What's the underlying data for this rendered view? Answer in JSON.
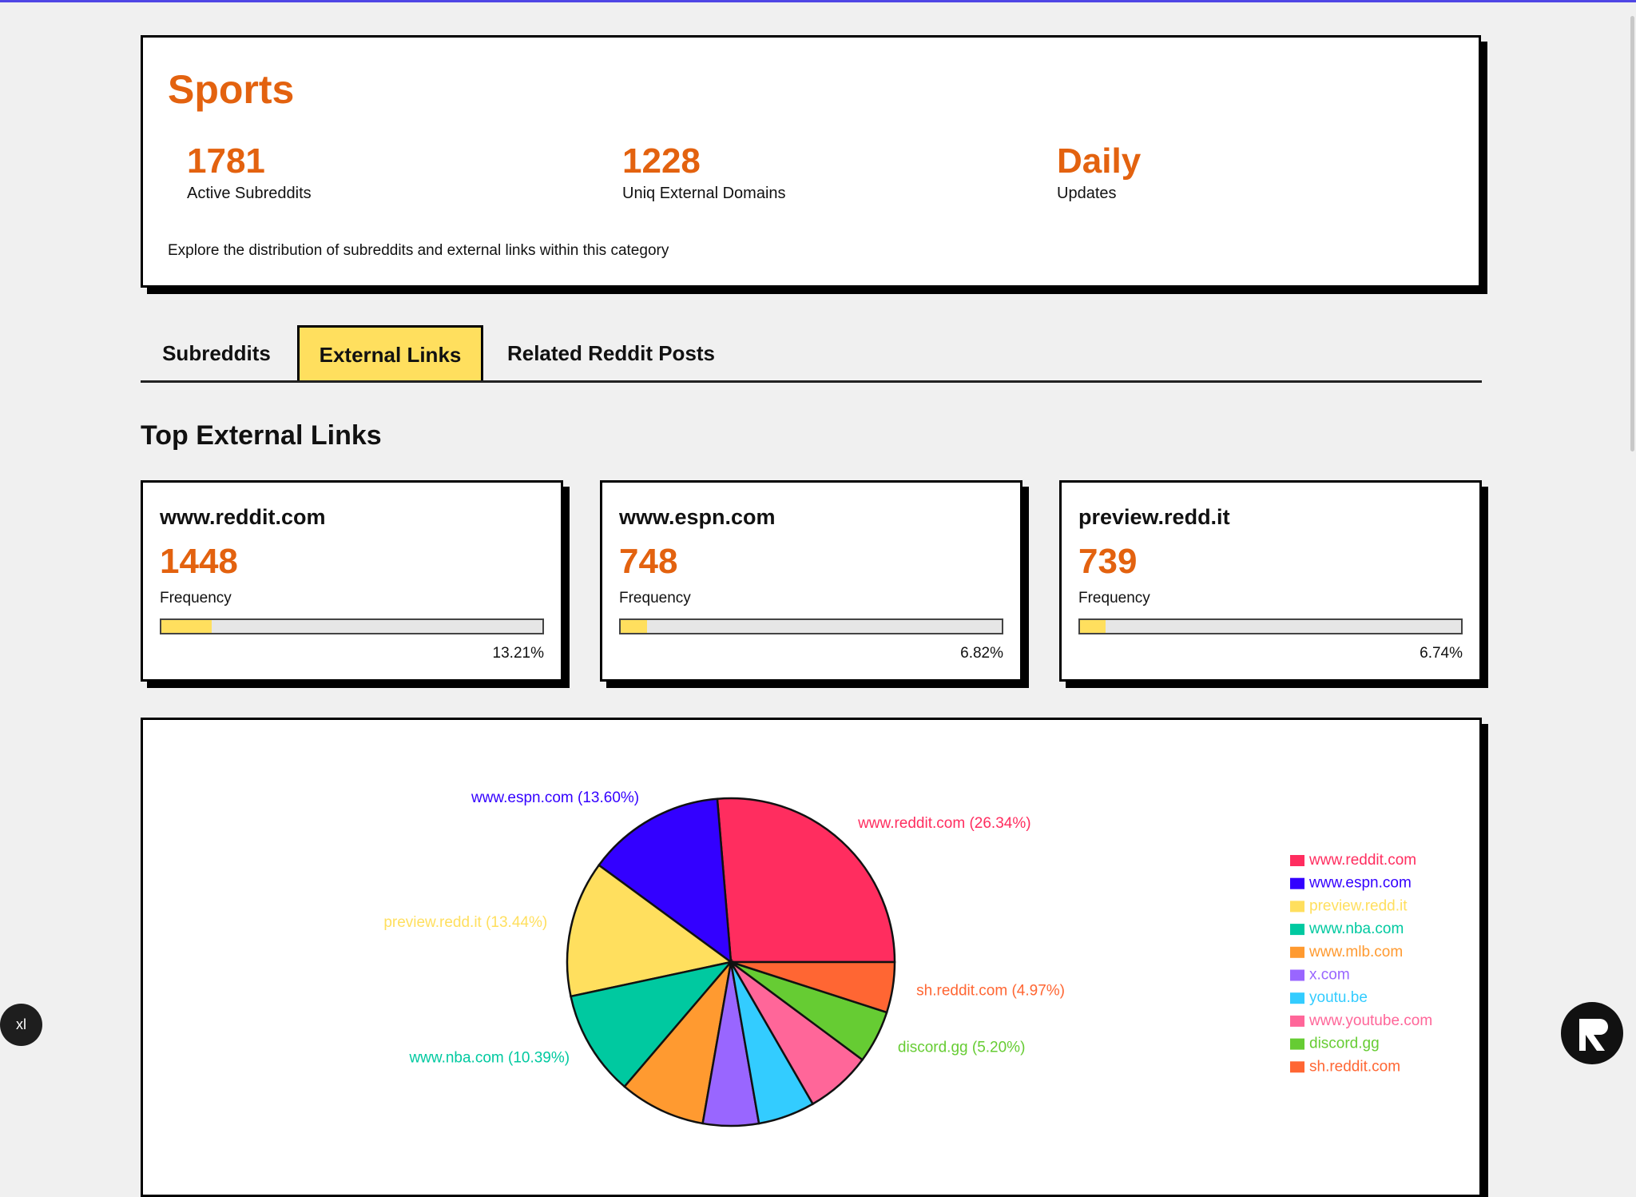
{
  "header": {
    "title": "Sports",
    "stats": [
      {
        "value": 1781,
        "label": "Active Subreddits"
      },
      {
        "value": 1228,
        "label": "Uniq External Domains"
      },
      {
        "value": "Daily",
        "label": "Updates"
      }
    ],
    "description": "Explore the distribution of subreddits and external links within this category"
  },
  "tabs": [
    "Subreddits",
    "External Links",
    "Related Reddit Posts"
  ],
  "active_tab": 1,
  "section_title": "Top External Links",
  "frequency_label": "Frequency",
  "cards": [
    {
      "domain": "www.reddit.com",
      "frequency": 1448,
      "share": 13.21,
      "share_label": "13.21%"
    },
    {
      "domain": "www.espn.com",
      "frequency": 748,
      "share": 6.82,
      "share_label": "6.82%"
    },
    {
      "domain": "preview.redd.it",
      "frequency": 739,
      "share": 6.74,
      "share_label": "6.74%"
    }
  ],
  "chart_data": {
    "type": "pie",
    "categories": [
      "www.reddit.com",
      "www.espn.com",
      "preview.redd.it",
      "www.nba.com",
      "www.mlb.com",
      "x.com",
      "youtu.be",
      "www.youtube.com",
      "discord.gg",
      "sh.reddit.com"
    ],
    "values": [
      26.34,
      13.6,
      13.44,
      10.39,
      8.5,
      5.5,
      5.6,
      6.5,
      5.2,
      4.97
    ],
    "value_labels": [
      "www.reddit.com (26.34%)",
      "www.espn.com (13.60%)",
      "preview.redd.it (13.44%)",
      "www.nba.com (10.39%)",
      null,
      null,
      null,
      null,
      "discord.gg (5.20%)",
      "sh.reddit.com (4.97%)"
    ],
    "colors": [
      "#ff2d5f",
      "#3300ff",
      "#ffdf5e",
      "#00c9a0",
      "#ff9a30",
      "#9966ff",
      "#33ccff",
      "#ff6699",
      "#66cc33",
      "#ff6633"
    ],
    "legend": "right"
  },
  "badge": "xl"
}
